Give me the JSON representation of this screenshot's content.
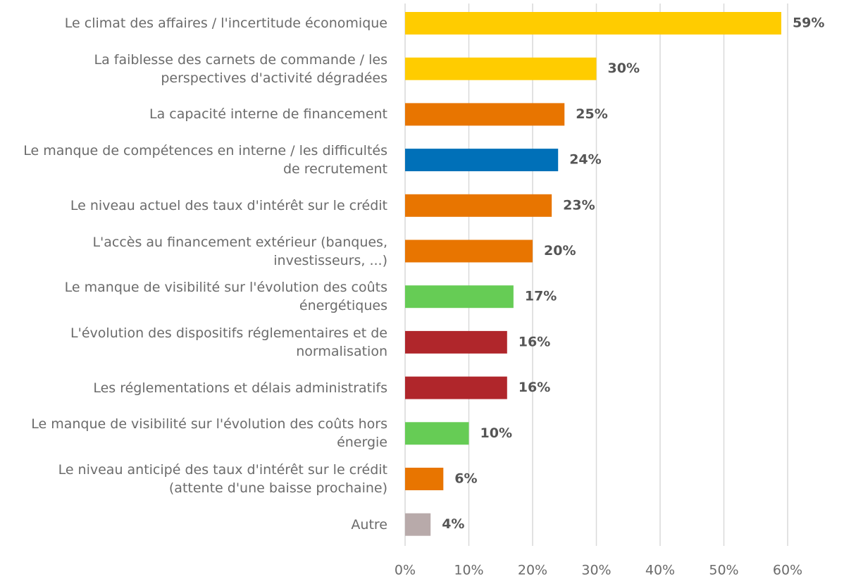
{
  "chart_data": {
    "type": "barh",
    "categories": [
      "Le climat des affaires / l'incertitude économique",
      "La faiblesse des carnets de commande / les perspectives d'activité dégradées",
      "La capacité interne de financement",
      "Le manque de compétences en interne / les difficultés de recrutement",
      "Le niveau actuel des taux d'intérêt sur le crédit",
      "L'accès au financement extérieur (banques, investisseurs, ...)",
      "Le manque de visibilité sur l'évolution des coûts énergétiques",
      "L'évolution des dispositifs réglementaires et de normalisation",
      "Les réglementations et délais administratifs",
      "Le manque de visibilité sur l'évolution des coûts hors énergie",
      "Le niveau anticipé des taux d'intérêt sur le crédit (attente d'une baisse prochaine)",
      "Autre"
    ],
    "values": [
      59,
      30,
      25,
      24,
      23,
      20,
      17,
      16,
      16,
      10,
      6,
      4
    ],
    "value_labels": [
      "59%",
      "30%",
      "25%",
      "24%",
      "23%",
      "20%",
      "17%",
      "16%",
      "16%",
      "10%",
      "6%",
      "4%"
    ],
    "colors": [
      "#ffcc00",
      "#ffcc00",
      "#e87500",
      "#0070b8",
      "#e87500",
      "#e87500",
      "#66cc55",
      "#b0262b",
      "#b0262b",
      "#66cc55",
      "#e87500",
      "#b8aaaa"
    ],
    "xlim": [
      0,
      60
    ],
    "xticks": [
      {
        "value": 0,
        "label": "0%"
      },
      {
        "value": 10,
        "label": "10%"
      },
      {
        "value": 20,
        "label": "20%"
      },
      {
        "value": 30,
        "label": "30%"
      },
      {
        "value": 40,
        "label": "40%"
      },
      {
        "value": 50,
        "label": "50%"
      },
      {
        "value": 60,
        "label": "60%"
      }
    ],
    "grid": true
  }
}
